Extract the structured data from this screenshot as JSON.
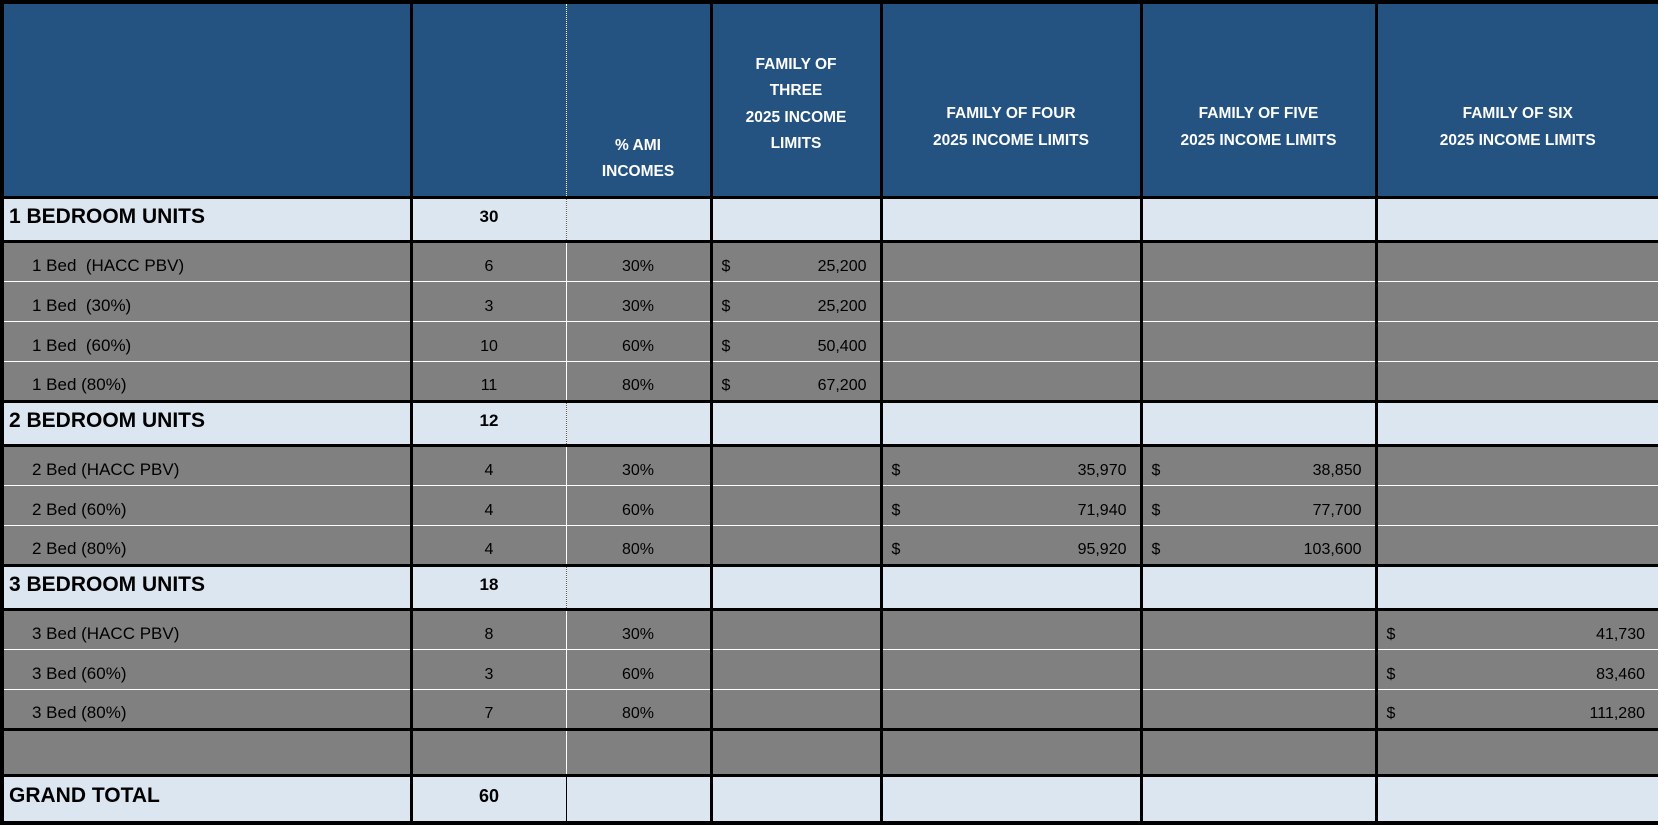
{
  "colors": {
    "header_bg": "#245381",
    "section_bg": "#DCE6F1",
    "data_bg": "#808080",
    "border": "#000000",
    "header_text": "#FFFFFF"
  },
  "header": {
    "col_label": "",
    "col_count": "",
    "col_ami": "% AMI\nINCOMES",
    "col_family_three": "FAMILY OF\nTHREE\n2025 INCOME\nLIMITS",
    "col_family_four": "FAMILY OF FOUR\n2025 INCOME LIMITS",
    "col_family_five": "FAMILY OF FIVE\n2025 INCOME LIMITS",
    "col_family_six": "FAMILY OF SIX\n2025 INCOME LIMITS"
  },
  "rows": [
    {
      "type": "section",
      "label": "1 BEDROOM UNITS",
      "count": "30"
    },
    {
      "type": "data",
      "label": "1 Bed  (HACC PBV)",
      "count": "6",
      "ami": "30%",
      "f3": {
        "symbol": "$",
        "amount": "25,200"
      }
    },
    {
      "type": "data",
      "label": "1 Bed  (30%)",
      "count": "3",
      "ami": "30%",
      "f3": {
        "symbol": "$",
        "amount": "25,200"
      }
    },
    {
      "type": "data",
      "label": "1 Bed  (60%)",
      "count": "10",
      "ami": "60%",
      "f3": {
        "symbol": "$",
        "amount": "50,400"
      }
    },
    {
      "type": "data",
      "label": "1 Bed (80%)",
      "count": "11",
      "ami": "80%",
      "f3": {
        "symbol": "$",
        "amount": "67,200"
      }
    },
    {
      "type": "section",
      "label": "2 BEDROOM UNITS",
      "count": "12"
    },
    {
      "type": "data",
      "label": "2 Bed (HACC PBV)",
      "count": "4",
      "ami": "30%",
      "f4": {
        "symbol": "$",
        "amount": "35,970"
      },
      "f5": {
        "symbol": "$",
        "amount": "38,850"
      }
    },
    {
      "type": "data",
      "label": "2 Bed (60%)",
      "count": "4",
      "ami": "60%",
      "f4": {
        "symbol": "$",
        "amount": "71,940"
      },
      "f5": {
        "symbol": "$",
        "amount": "77,700"
      }
    },
    {
      "type": "data",
      "label": "2 Bed (80%)",
      "count": "4",
      "ami": "80%",
      "f4": {
        "symbol": "$",
        "amount": "95,920"
      },
      "f5": {
        "symbol": "$",
        "amount": "103,600"
      }
    },
    {
      "type": "section",
      "label": "3 BEDROOM UNITS",
      "count": "18"
    },
    {
      "type": "data",
      "label": "3 Bed (HACC PBV)",
      "count": "8",
      "ami": "30%",
      "f6": {
        "symbol": "$",
        "amount": "41,730"
      }
    },
    {
      "type": "data",
      "label": "3 Bed (60%)",
      "count": "3",
      "ami": "60%",
      "f6": {
        "symbol": "$",
        "amount": "83,460"
      }
    },
    {
      "type": "data",
      "label": "3 Bed (80%)",
      "count": "7",
      "ami": "80%",
      "f6": {
        "symbol": "$",
        "amount": "111,280"
      }
    },
    {
      "type": "empty"
    },
    {
      "type": "total",
      "label": "GRAND TOTAL",
      "count": "60"
    }
  ]
}
